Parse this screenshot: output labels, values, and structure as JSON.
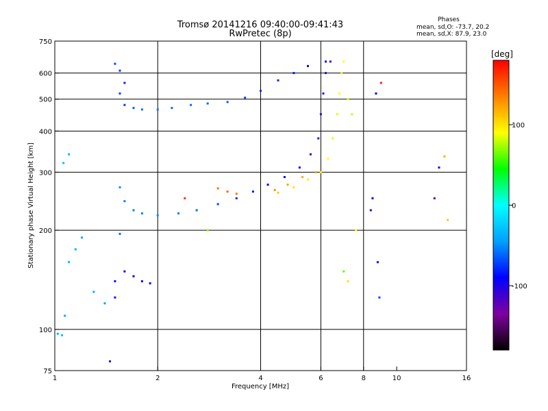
{
  "chart_data": {
    "type": "scatter",
    "title": "Tromsø 20141216 09:40:00-09:41:43",
    "subtitle": "RwPretec (8p)",
    "xlabel": "Frequency [MHz]",
    "ylabel": "Stationary phase Virtual Height [km]",
    "x_scale": "log",
    "y_scale": "log",
    "xlim": [
      1,
      16
    ],
    "ylim": [
      75,
      750
    ],
    "x_ticks": [
      1,
      2,
      4,
      6,
      8,
      10,
      16
    ],
    "x_grid": [
      2,
      4,
      6,
      8
    ],
    "y_ticks": [
      75,
      100,
      200,
      300,
      400,
      500,
      600,
      750
    ],
    "y_grid": [
      100,
      200,
      300,
      400,
      500,
      600
    ],
    "grid": true,
    "stats": {
      "heading": "Phases",
      "line1": "mean, sd,O: -73.7, 20.2",
      "line2": "mean, sd,X:  87.9, 23.0"
    },
    "colorbar": {
      "label": "[deg]",
      "range": [
        -180,
        180
      ],
      "ticks": [
        -100,
        0,
        100
      ],
      "colormap": [
        "#000000",
        "#8000a0",
        "#0000ff",
        "#00a0ff",
        "#00ffff",
        "#00ff00",
        "#ffff00",
        "#ff8000",
        "#ff0000"
      ]
    },
    "series": [
      {
        "values": [
          [
            1.02,
            97,
            -35
          ],
          [
            1.05,
            96,
            -30
          ],
          [
            1.07,
            110,
            -40
          ],
          [
            1.1,
            160,
            -35
          ],
          [
            1.15,
            175,
            -38
          ],
          [
            1.2,
            190,
            -40
          ],
          [
            1.06,
            320,
            -30
          ],
          [
            1.1,
            340,
            -35
          ],
          [
            1.3,
            130,
            -40
          ],
          [
            1.4,
            120,
            -45
          ]
        ]
      },
      {
        "values": [
          [
            1.5,
            640,
            -70
          ],
          [
            1.55,
            610,
            -75
          ],
          [
            1.6,
            560,
            -80
          ],
          [
            1.55,
            520,
            -70
          ],
          [
            1.6,
            480,
            -75
          ],
          [
            1.7,
            470,
            -65
          ],
          [
            1.8,
            465,
            -60
          ],
          [
            2.0,
            465,
            -55
          ],
          [
            2.2,
            470,
            -60
          ],
          [
            2.5,
            480,
            -60
          ],
          [
            2.8,
            485,
            -62
          ],
          [
            3.2,
            490,
            -65
          ],
          [
            3.6,
            505,
            -70
          ],
          [
            4.0,
            530,
            -75
          ],
          [
            4.5,
            570,
            -80
          ],
          [
            5.0,
            600,
            -85
          ],
          [
            5.5,
            630,
            -90
          ],
          [
            6.2,
            650,
            -95
          ]
        ]
      },
      {
        "values": [
          [
            1.55,
            270,
            -50
          ],
          [
            1.6,
            245,
            -55
          ],
          [
            1.7,
            230,
            -55
          ],
          [
            1.8,
            225,
            -52
          ],
          [
            2.0,
            222,
            -50
          ],
          [
            2.3,
            225,
            -55
          ],
          [
            2.6,
            230,
            -60
          ],
          [
            3.0,
            240,
            -70
          ],
          [
            3.4,
            250,
            -78
          ],
          [
            3.8,
            262,
            -85
          ],
          [
            4.2,
            275,
            -90
          ],
          [
            4.7,
            290,
            -95
          ],
          [
            5.2,
            310,
            -100
          ],
          [
            5.6,
            340,
            -105
          ],
          [
            5.9,
            380,
            -108
          ],
          [
            6.0,
            450,
            -110
          ],
          [
            6.1,
            520,
            -110
          ],
          [
            6.2,
            600,
            -112
          ],
          [
            6.4,
            650,
            -115
          ]
        ]
      },
      {
        "values": [
          [
            4.5,
            260,
            110
          ],
          [
            5.0,
            270,
            100
          ],
          [
            5.5,
            285,
            95
          ],
          [
            6.0,
            300,
            95
          ],
          [
            6.3,
            330,
            90
          ],
          [
            6.5,
            380,
            85
          ],
          [
            6.7,
            450,
            85
          ],
          [
            6.8,
            520,
            90
          ],
          [
            6.9,
            600,
            88
          ],
          [
            7.0,
            650,
            90
          ],
          [
            7.2,
            500,
            85
          ],
          [
            7.4,
            450,
            80
          ]
        ]
      },
      {
        "values": [
          [
            3.0,
            268,
            140
          ],
          [
            3.2,
            262,
            145
          ],
          [
            3.4,
            258,
            140
          ],
          [
            4.4,
            265,
            130
          ],
          [
            4.8,
            275,
            125
          ],
          [
            5.3,
            290,
            120
          ],
          [
            5.8,
            300,
            125
          ]
        ]
      },
      {
        "values": [
          [
            1.5,
            140,
            -90
          ],
          [
            1.6,
            150,
            -95
          ],
          [
            1.7,
            145,
            -90
          ],
          [
            1.8,
            140,
            -92
          ],
          [
            1.9,
            138,
            -88
          ],
          [
            1.5,
            125,
            -85
          ],
          [
            1.55,
            195,
            -60
          ],
          [
            1.45,
            80,
            -110
          ]
        ]
      },
      {
        "values": [
          [
            7.0,
            150,
            60
          ],
          [
            7.2,
            140,
            100
          ],
          [
            7.6,
            200,
            90
          ],
          [
            8.4,
            230,
            -100
          ],
          [
            8.5,
            250,
            -90
          ],
          [
            8.8,
            160,
            -100
          ],
          [
            8.9,
            125,
            -70
          ],
          [
            12.9,
            250,
            -120
          ],
          [
            13.3,
            310,
            -100
          ],
          [
            13.8,
            335,
            120
          ],
          [
            14.1,
            215,
            110
          ],
          [
            2.8,
            200,
            70
          ],
          [
            2.4,
            250,
            160
          ],
          [
            9.0,
            560,
            170
          ],
          [
            8.7,
            520,
            -90
          ]
        ]
      }
    ]
  }
}
